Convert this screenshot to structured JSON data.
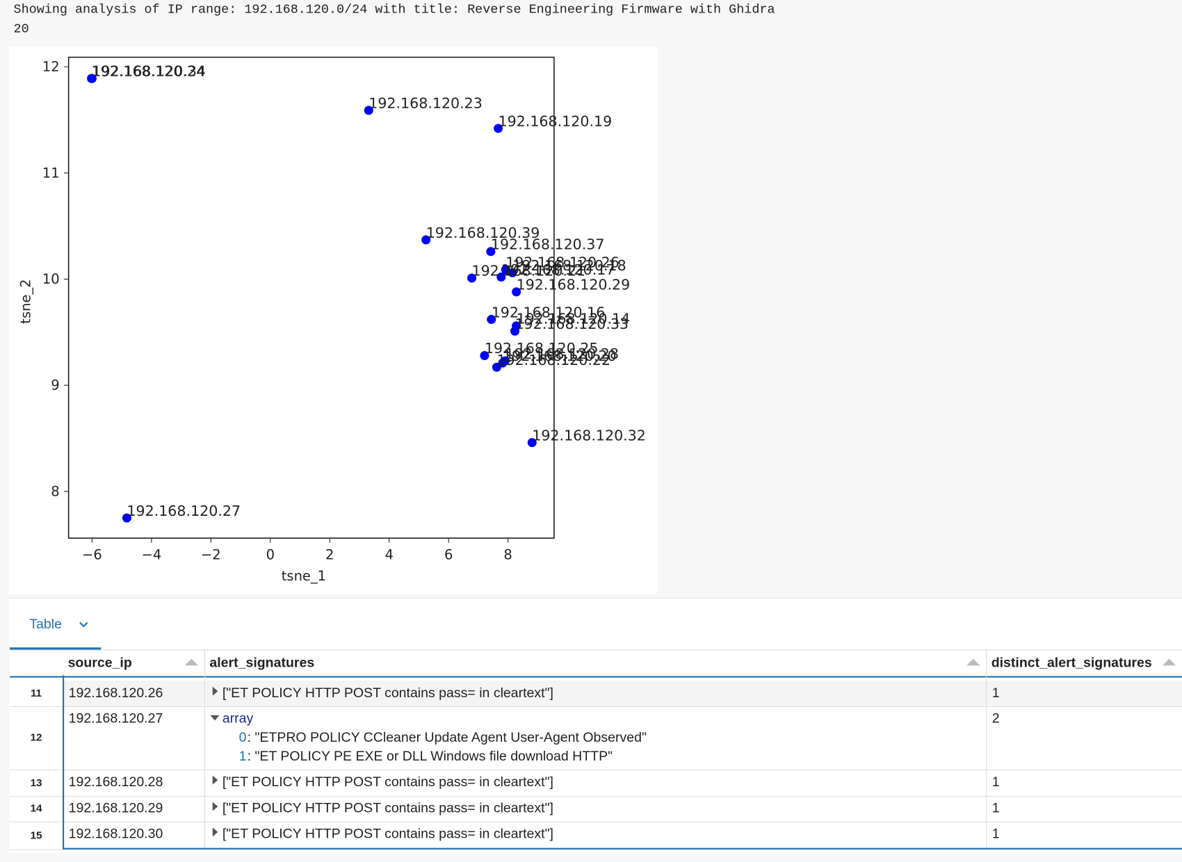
{
  "header": {
    "line1": "Showing analysis of IP range: 192.168.120.0/24 with title: Reverse Engineering Firmware with Ghidra",
    "line2": "20"
  },
  "chart_data": {
    "type": "scatter",
    "x_label": "tsne_1",
    "y_label": "tsne_2",
    "xlim": [
      -6.79,
      9.55
    ],
    "ylim": [
      7.56,
      12.09
    ],
    "xticks": [
      {
        "value": -6,
        "label": "−6"
      },
      {
        "value": -4,
        "label": "−4"
      },
      {
        "value": -2,
        "label": "−2"
      },
      0,
      2,
      4,
      6,
      8
    ],
    "yticks": [
      8,
      9,
      10,
      11,
      12
    ],
    "series": [
      {
        "color": "#0000ff",
        "x": [
          -6.02,
          -6.0,
          3.31,
          7.67,
          5.24,
          7.42,
          7.92,
          8.15,
          7.77,
          6.78,
          8.28,
          7.44,
          8.28,
          8.23,
          7.21,
          7.9,
          7.82,
          7.62,
          8.81,
          -4.83
        ],
        "values": [
          11.89,
          11.89,
          11.59,
          11.42,
          10.37,
          10.26,
          10.09,
          10.06,
          10.02,
          10.01,
          9.88,
          9.62,
          9.56,
          9.51,
          9.28,
          9.23,
          9.21,
          9.17,
          8.46,
          7.75
        ]
      }
    ],
    "point_labels": [
      "192.168.120.24",
      "192.168.120.34",
      "192.168.120.23",
      "192.168.120.19",
      "192.168.120.39",
      "192.168.120.37",
      "192.168.120.26",
      "192.168.120.18",
      "192.168.120.17",
      "192.168.120.21",
      "192.168.120.29",
      "192.168.120.16",
      "192.168.120.14",
      "192.168.120.33",
      "192.168.120.25",
      "192.168.120.28",
      "192.168.120.20",
      "192.168.120.22",
      "192.168.120.32",
      "192.168.120.27"
    ]
  },
  "table": {
    "tab": "Table",
    "columns": [
      "source_ip",
      "alert_signatures",
      "distinct_alert_signatures"
    ],
    "rows": [
      {
        "index": "11",
        "source_ip": "192.168.120.26",
        "alert_signatures": "[\"ET POLICY HTTP POST contains pass= in cleartext\"]",
        "distinct": "1"
      },
      {
        "index": "12",
        "source_ip": "192.168.120.27",
        "array_label": "array",
        "items": [
          {
            "key": "0",
            "text": ": \"ETPRO POLICY CCleaner Update Agent User-Agent Observed\""
          },
          {
            "key": "1",
            "text": ": \"ET POLICY PE EXE or DLL Windows file download HTTP\""
          }
        ],
        "distinct": "2"
      },
      {
        "index": "13",
        "source_ip": "192.168.120.28",
        "alert_signatures": "[\"ET POLICY HTTP POST contains pass= in cleartext\"]",
        "distinct": "1"
      },
      {
        "index": "14",
        "source_ip": "192.168.120.29",
        "alert_signatures": "[\"ET POLICY HTTP POST contains pass= in cleartext\"]",
        "distinct": "1"
      },
      {
        "index": "15",
        "source_ip": "192.168.120.30",
        "alert_signatures": "[\"ET POLICY HTTP POST contains pass= in cleartext\"]",
        "distinct": "1"
      }
    ]
  }
}
